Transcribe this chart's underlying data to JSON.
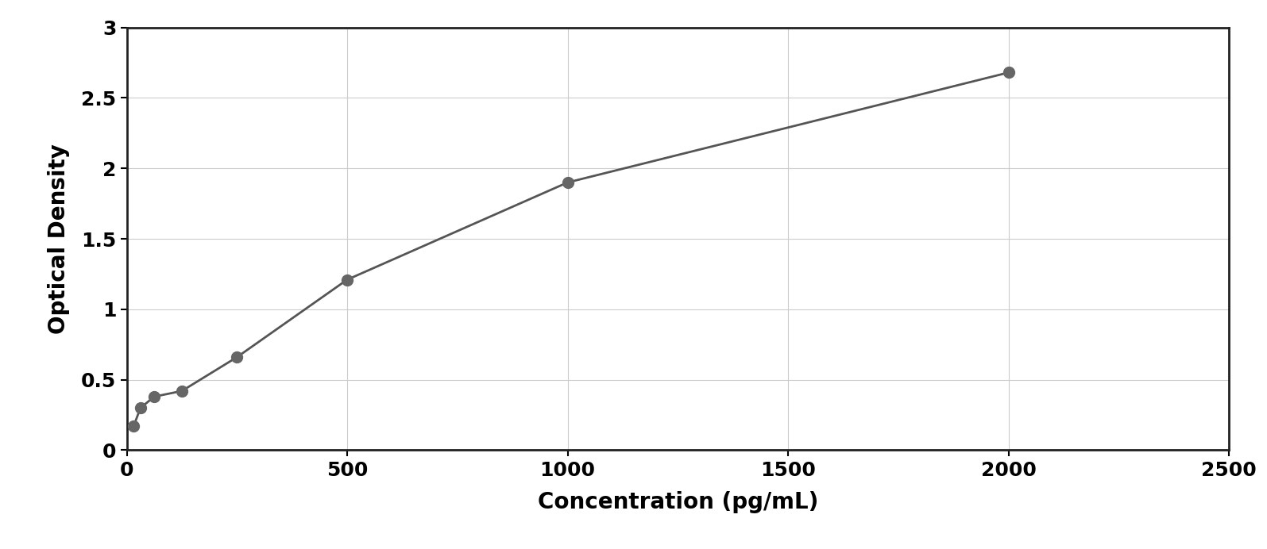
{
  "x_data": [
    15.625,
    31.25,
    62.5,
    125,
    250,
    500,
    1000,
    2000
  ],
  "y_data": [
    0.17,
    0.3,
    0.38,
    0.42,
    0.66,
    1.21,
    1.9,
    2.68
  ],
  "xlabel": "Concentration (pg/mL)",
  "ylabel": "Optical Density",
  "xlim": [
    0,
    2500
  ],
  "ylim": [
    0,
    3.0
  ],
  "xticks": [
    0,
    500,
    1000,
    1500,
    2000,
    2500
  ],
  "yticks": [
    0,
    0.5,
    1.0,
    1.5,
    2.0,
    2.5,
    3.0
  ],
  "marker_color": "#666666",
  "line_color": "#555555",
  "background_color": "#ffffff",
  "grid_color": "#cccccc",
  "border_color": "#222222",
  "marker_size": 100,
  "line_width": 2.0,
  "xlabel_fontsize": 20,
  "ylabel_fontsize": 20,
  "tick_fontsize": 18,
  "xlabel_fontweight": "bold",
  "ylabel_fontweight": "bold",
  "curve_x_max": 2100,
  "figsize": [
    15.95,
    6.92
  ],
  "dpi": 100
}
